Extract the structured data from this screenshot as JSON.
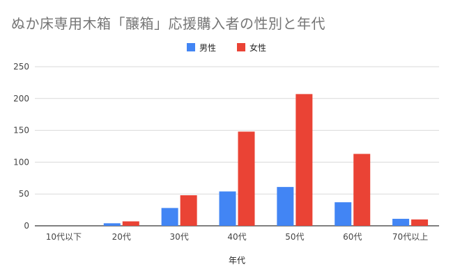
{
  "title": "ぬか床専用木箱「醸箱」応援購入者の性別と年代",
  "chart_data": {
    "type": "bar",
    "categories": [
      "10代以下",
      "20代",
      "30代",
      "40代",
      "50代",
      "60代",
      "70代以上"
    ],
    "series": [
      {
        "name": "男性",
        "color": "#4285f4",
        "values": [
          0,
          4,
          28,
          54,
          61,
          37,
          11
        ]
      },
      {
        "name": "女性",
        "color": "#ea4335",
        "values": [
          0,
          7,
          48,
          148,
          207,
          113,
          10
        ]
      }
    ],
    "xlabel": "年代",
    "ylabel": "",
    "ylim": [
      0,
      250
    ],
    "yticks": [
      0,
      50,
      100,
      150,
      200,
      250
    ],
    "grid": true,
    "legend_position": "top-center"
  }
}
